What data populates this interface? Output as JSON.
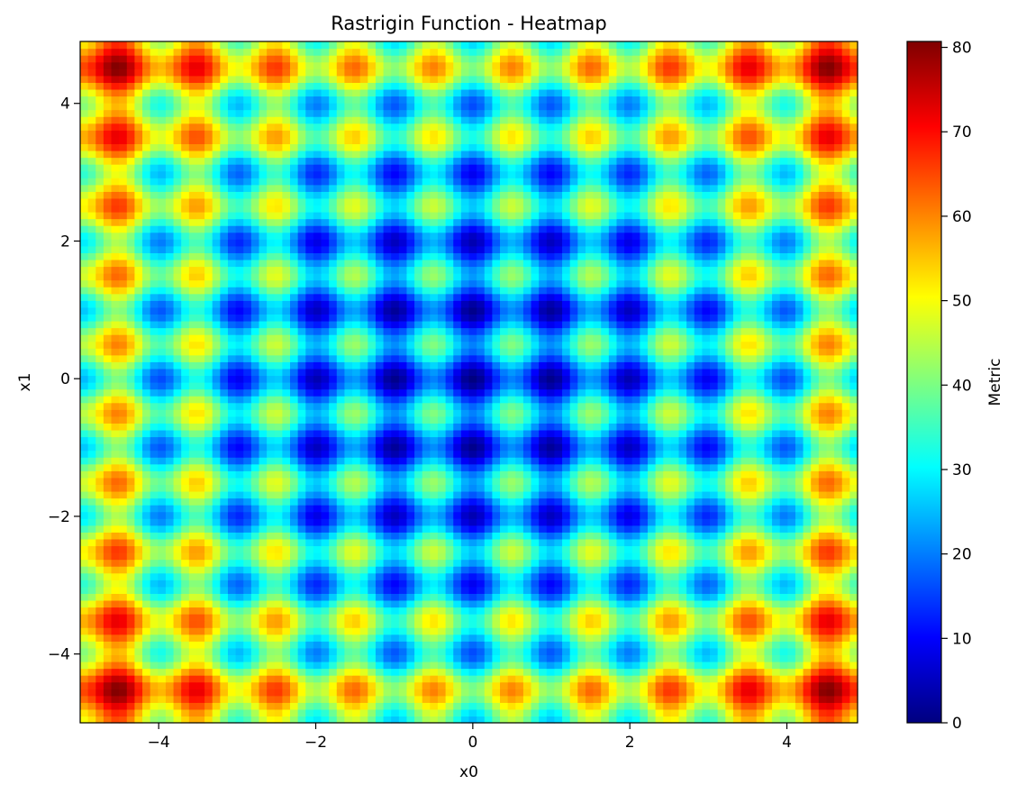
{
  "chart_data": {
    "type": "heatmap",
    "title": "Rastrigin Function - Heatmap",
    "xlabel": "x0",
    "ylabel": "x1",
    "colorbar_label": "Metric",
    "colormap": "jet",
    "function": "Rastrigin, A = 10, n = 2",
    "grid": false,
    "xlim": [
      -5,
      4.9
    ],
    "ylim": [
      -5,
      4.9
    ],
    "grid_resolution": 100,
    "value_range": [
      0,
      80.7
    ],
    "x_ticks": [
      -4,
      -2,
      0,
      2,
      4
    ],
    "x_tick_labels": [
      "−4",
      "−2",
      "0",
      "2",
      "4"
    ],
    "y_ticks": [
      -4,
      -2,
      0,
      2,
      4
    ],
    "y_tick_labels": [
      "−4",
      "−2",
      "0",
      "2",
      "4"
    ],
    "colorbar_ticks": [
      0,
      10,
      20,
      30,
      40,
      50,
      60,
      70,
      80
    ],
    "colorbar_tick_labels": [
      "0",
      "10",
      "20",
      "30",
      "40",
      "50",
      "60",
      "70",
      "80"
    ],
    "legend": "colorbar at right",
    "colorbar_gradient": [
      "#00007f",
      "#0000ff",
      "#007fff",
      "#00ffff",
      "#7fff7f",
      "#ffff00",
      "#ff7f00",
      "#ff0000",
      "#7f0000"
    ]
  }
}
